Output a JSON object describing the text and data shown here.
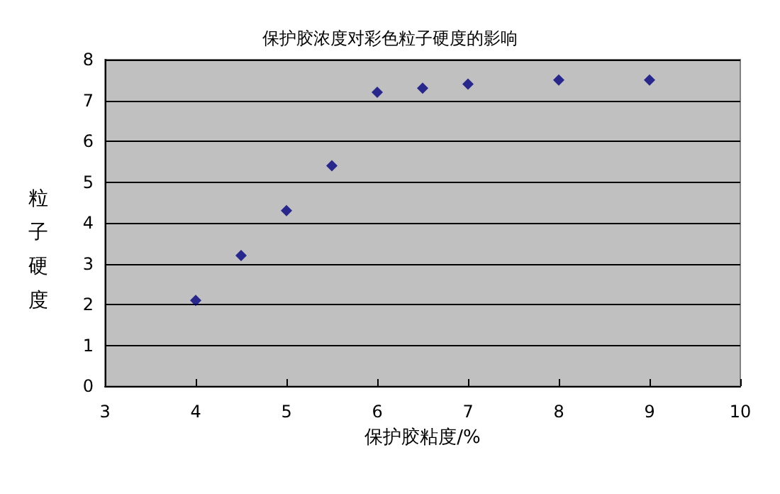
{
  "chart_data": {
    "type": "scatter",
    "title": "保护胶浓度对彩色粒子硬度的影响",
    "xlabel": "保护胶粘度/%",
    "ylabel": "粒子硬度",
    "x": [
      4,
      4.5,
      5,
      5.5,
      6,
      6.5,
      7,
      8,
      9
    ],
    "values": [
      2.1,
      3.2,
      4.3,
      5.4,
      7.2,
      7.3,
      7.4,
      7.5,
      7.5
    ],
    "color": "#000080",
    "marker": "diamond",
    "grid": "y",
    "xlim": [
      3,
      10
    ],
    "xticks": [
      3,
      4,
      5,
      6,
      7,
      8,
      9,
      10
    ],
    "ylim": [
      0,
      8
    ],
    "yticks": [
      0,
      1,
      2,
      3,
      4,
      5,
      6,
      7,
      8
    ]
  }
}
